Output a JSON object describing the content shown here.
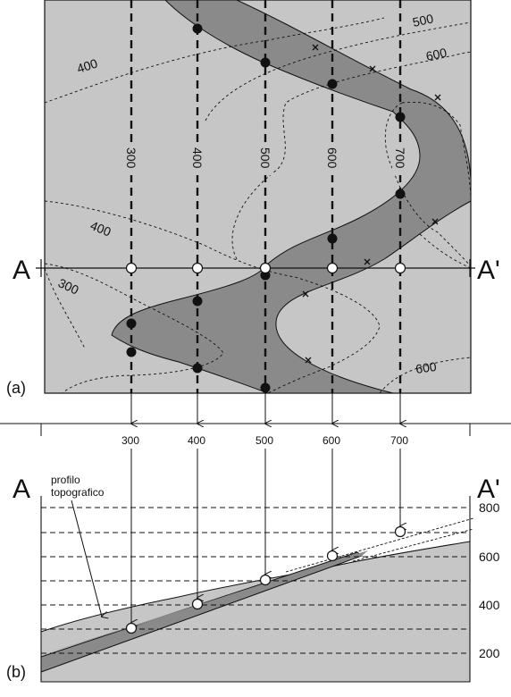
{
  "map": {
    "panel_label": "(a)",
    "section_start": "A",
    "section_end": "A'",
    "strike_labels": [
      "300",
      "400",
      "500",
      "600",
      "700"
    ],
    "contour_labels": [
      "400",
      "500",
      "600",
      "400",
      "300",
      "600"
    ]
  },
  "section": {
    "panel_label": "(b)",
    "section_start": "A",
    "section_end": "A'",
    "projection_labels": [
      "300",
      "400",
      "500",
      "600",
      "700"
    ],
    "elevation_labels": [
      "800",
      "600",
      "400",
      "200"
    ],
    "topo_label_line1": "profilo",
    "topo_label_line2": "topografico"
  },
  "colors": {
    "background": "#c6c6c6",
    "bed": "#8a8a8a",
    "line": "#111111"
  }
}
